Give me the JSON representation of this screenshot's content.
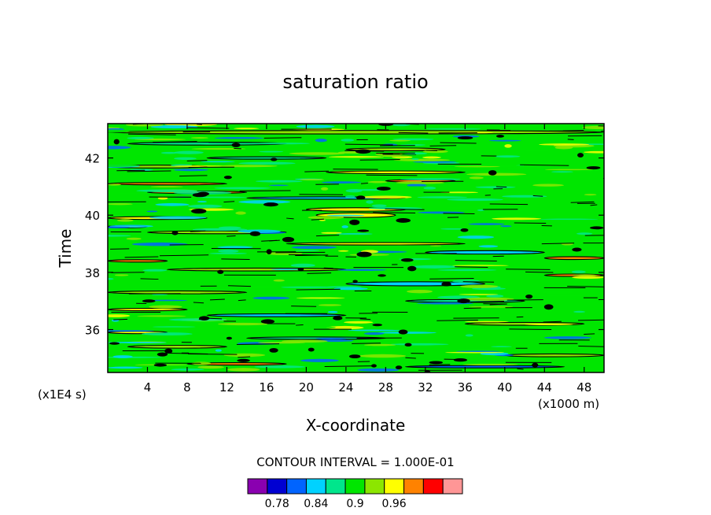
{
  "chart_data": {
    "type": "heatmap",
    "title": "saturation ratio",
    "xlabel": "X-coordinate",
    "ylabel": "Time",
    "x_unit_label": "(x1000 m)",
    "y_unit_label": "(x1E4 s)",
    "xlim": [
      0,
      50
    ],
    "ylim": [
      34.5,
      43.2
    ],
    "x_ticks": [
      4,
      8,
      12,
      16,
      20,
      24,
      28,
      32,
      36,
      40,
      44,
      48
    ],
    "x_tick_labels": [
      "4",
      "8",
      "12",
      "16",
      "20",
      "24",
      "28",
      "32",
      "36",
      "40",
      "44",
      "48"
    ],
    "y_ticks": [
      36,
      38,
      40,
      42
    ],
    "y_tick_labels": [
      "36",
      "38",
      "40",
      "42"
    ],
    "contour_interval_text": "CONTOUR INTERVAL = 1.000E-01",
    "colorbar": {
      "colors": [
        "#8a00b0",
        "#0000d2",
        "#0064ff",
        "#00d2ff",
        "#00e68c",
        "#00e600",
        "#8ce600",
        "#ffff00",
        "#ff8200",
        "#ff0000",
        "#ff9696"
      ],
      "labels": [
        "0.78",
        "0.84",
        "0.9",
        "0.96"
      ],
      "label_positions": [
        1,
        3,
        5,
        7
      ]
    },
    "background_level_index": 5,
    "bands": [
      {
        "t": 42.9,
        "x0": 0,
        "x1": 50,
        "level": 6,
        "h": 0.12
      },
      {
        "t": 42.5,
        "x0": 2,
        "x1": 18,
        "level": 4,
        "h": 0.1
      },
      {
        "t": 42.3,
        "x0": 24,
        "x1": 34,
        "level": 6,
        "h": 0.1
      },
      {
        "t": 42.0,
        "x0": 10,
        "x1": 22,
        "level": 4,
        "h": 0.08
      },
      {
        "t": 41.7,
        "x0": 0,
        "x1": 10,
        "level": 6,
        "h": 0.1
      },
      {
        "t": 41.5,
        "x0": 22,
        "x1": 36,
        "level": 7,
        "h": 0.09
      },
      {
        "t": 41.2,
        "x0": 28,
        "x1": 35,
        "level": 8,
        "h": 0.06
      },
      {
        "t": 41.1,
        "x0": 0,
        "x1": 12,
        "level": 8,
        "h": 0.06
      },
      {
        "t": 40.8,
        "x0": 4,
        "x1": 14,
        "level": 8,
        "h": 0.06
      },
      {
        "t": 40.6,
        "x0": 14,
        "x1": 30,
        "level": 3,
        "h": 0.08
      },
      {
        "t": 40.2,
        "x0": 20,
        "x1": 30,
        "level": 7,
        "h": 0.12
      },
      {
        "t": 40.0,
        "x0": 21,
        "x1": 29,
        "level": 7,
        "h": 0.16
      },
      {
        "t": 39.9,
        "x0": 0,
        "x1": 10,
        "level": 7,
        "h": 0.1
      },
      {
        "t": 39.6,
        "x0": 0,
        "x1": 4,
        "level": 8,
        "h": 0.08
      },
      {
        "t": 39.4,
        "x0": 4,
        "x1": 18,
        "level": 6,
        "h": 0.1
      },
      {
        "t": 39.0,
        "x0": 18,
        "x1": 36,
        "level": 7,
        "h": 0.06
      },
      {
        "t": 38.7,
        "x0": 32,
        "x1": 44,
        "level": 3,
        "h": 0.12
      },
      {
        "t": 38.5,
        "x0": 44,
        "x1": 50,
        "level": 8,
        "h": 0.1
      },
      {
        "t": 38.4,
        "x0": 0,
        "x1": 6,
        "level": 8,
        "h": 0.08
      },
      {
        "t": 38.1,
        "x0": 6,
        "x1": 24,
        "level": 6,
        "h": 0.1
      },
      {
        "t": 37.9,
        "x0": 44,
        "x1": 50,
        "level": 8,
        "h": 0.06
      },
      {
        "t": 37.6,
        "x0": 24,
        "x1": 38,
        "level": 3,
        "h": 0.14
      },
      {
        "t": 37.3,
        "x0": 0,
        "x1": 14,
        "level": 6,
        "h": 0.1
      },
      {
        "t": 37.0,
        "x0": 30,
        "x1": 42,
        "level": 4,
        "h": 0.1
      },
      {
        "t": 36.7,
        "x0": 0,
        "x1": 8,
        "level": 7,
        "h": 0.08
      },
      {
        "t": 36.5,
        "x0": 10,
        "x1": 24,
        "level": 3,
        "h": 0.1
      },
      {
        "t": 36.2,
        "x0": 36,
        "x1": 48,
        "level": 6,
        "h": 0.1
      },
      {
        "t": 35.9,
        "x0": 0,
        "x1": 6,
        "level": 7,
        "h": 0.08
      },
      {
        "t": 35.7,
        "x0": 14,
        "x1": 28,
        "level": 4,
        "h": 0.08
      },
      {
        "t": 35.4,
        "x0": 2,
        "x1": 12,
        "level": 6,
        "h": 0.1
      },
      {
        "t": 35.1,
        "x0": 40,
        "x1": 50,
        "level": 6,
        "h": 0.1
      },
      {
        "t": 34.8,
        "x0": 8,
        "x1": 18,
        "level": 8,
        "h": 0.06
      },
      {
        "t": 34.7,
        "x0": 30,
        "x1": 46,
        "level": 2,
        "h": 0.06
      }
    ]
  }
}
